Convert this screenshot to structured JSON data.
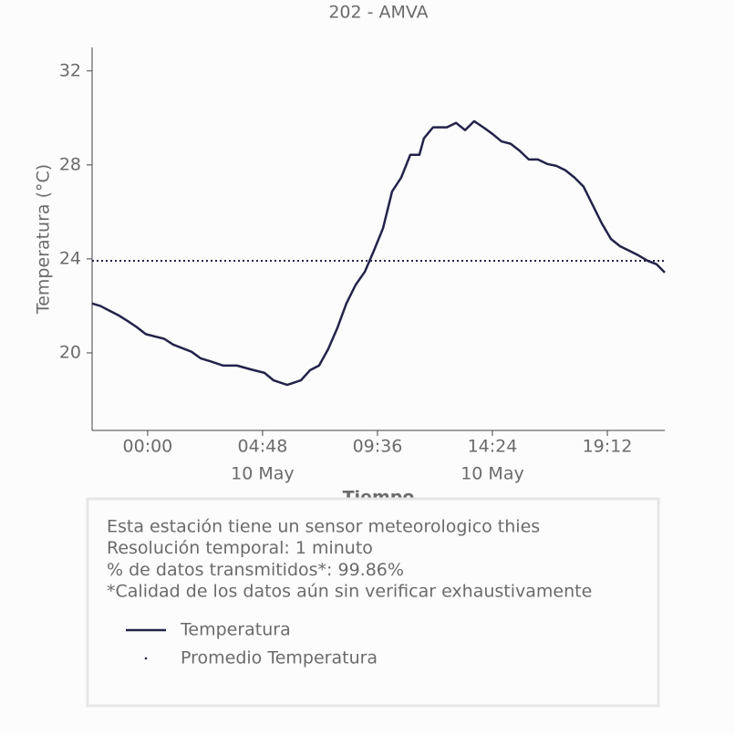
{
  "chart_data": {
    "type": "line",
    "title": "202 - AMVA",
    "x_label": "Tiempo",
    "y_label": "Temperatura (°C)",
    "x": [
      -2.32,
      -1.98,
      -1.6,
      -1.22,
      -0.84,
      -0.46,
      -0.08,
      0.3,
      0.69,
      1.07,
      1.45,
      1.83,
      2.21,
      2.59,
      3.16,
      3.73,
      4.3,
      4.88,
      5.26,
      5.83,
      6.4,
      6.78,
      7.16,
      7.54,
      7.92,
      8.3,
      8.69,
      9.07,
      9.45,
      9.83,
      10.21,
      10.59,
      10.97,
      11.35,
      11.54,
      11.92,
      12.5,
      12.88,
      13.26,
      13.64,
      14.02,
      14.4,
      14.78,
      15.16,
      15.54,
      15.92,
      16.3,
      16.69,
      17.07,
      17.45,
      17.83,
      18.21,
      18.59,
      18.97,
      19.35,
      19.73,
      20.11,
      20.5,
      20.88,
      21.26,
      21.6
    ],
    "series": [
      {
        "name": "Temperatura",
        "color": "#23234a",
        "values": [
          22.1,
          22.0,
          21.8,
          21.6,
          21.36,
          21.1,
          20.8,
          20.7,
          20.6,
          20.35,
          20.2,
          20.05,
          19.77,
          19.65,
          19.46,
          19.46,
          19.3,
          19.15,
          18.83,
          18.64,
          18.83,
          19.26,
          19.46,
          20.16,
          21.05,
          22.1,
          22.9,
          23.45,
          24.35,
          25.3,
          26.87,
          27.46,
          28.43,
          28.43,
          29.13,
          29.6,
          29.6,
          29.79,
          29.48,
          29.86,
          29.6,
          29.32,
          29.0,
          28.9,
          28.6,
          28.23,
          28.23,
          28.04,
          27.96,
          27.77,
          27.46,
          27.07,
          26.29,
          25.51,
          24.85,
          24.54,
          24.35,
          24.15,
          23.92,
          23.77,
          23.42
        ]
      }
    ],
    "mean": {
      "name": "Promedio Temperatura",
      "color": "#23234a",
      "value": 23.92
    },
    "xlim": [
      -2.32,
      21.6
    ],
    "ylim": [
      16.7,
      33.0
    ],
    "xticks": [
      {
        "value": 0,
        "label": "00:00"
      },
      {
        "value": 4.8,
        "label": "04:48"
      },
      {
        "value": 9.6,
        "label": "09:36"
      },
      {
        "value": 14.4,
        "label": "14:24"
      },
      {
        "value": 19.2,
        "label": "19:12"
      }
    ],
    "xtick_dates": [
      {
        "value": 4.8,
        "label": "10 May"
      },
      {
        "value": 14.4,
        "label": "10 May"
      }
    ],
    "yticks": [
      20,
      24,
      28,
      32
    ],
    "grid": false,
    "notes": [
      "Esta estación tiene un sensor meteorologico thies",
      "Resolución temporal: 1 minuto",
      "% de datos transmitidos*: 99.86%",
      "*Calidad de los datos aún sin verificar exhaustivamente"
    ]
  }
}
